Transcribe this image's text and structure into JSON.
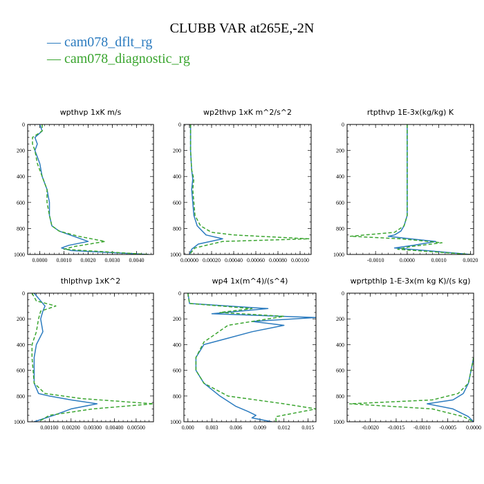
{
  "title": "CLUBB VAR at265E,-2N",
  "legend": [
    {
      "label": "— cam078_dflt_rg",
      "color": "#2b7bbf"
    },
    {
      "label": "— cam078_diagnostic_rg",
      "color": "#3aa52f"
    }
  ],
  "chart_data": [
    {
      "type": "line",
      "title": "wpthvp   1xK m/s",
      "xlim": [
        -0.0005,
        0.0047
      ],
      "ylim": [
        1000,
        0
      ],
      "xticks": [
        "0.0000",
        "0.0010",
        "0.0020",
        "0.0030",
        "0.0040"
      ],
      "xtick_values": [
        0,
        0.001,
        0.002,
        0.003,
        0.004
      ],
      "yticks": [
        "0",
        "200",
        "400",
        "600",
        "800",
        "1000"
      ],
      "series": [
        {
          "name": "cam078_dflt_rg",
          "color": "#2b7bbf",
          "dash": "",
          "x": [
            0.0,
            0.0001,
            -0.0002,
            -0.0001,
            -0.0002,
            -0.0001,
            0.0,
            0.0001,
            0.0003,
            0.0004,
            0.0004,
            0.0005,
            0.0008,
            0.0014,
            0.002,
            0.0012,
            0.0009,
            0.0013,
            0.0045
          ],
          "y": [
            0,
            50,
            100,
            150,
            200,
            250,
            300,
            400,
            500,
            600,
            700,
            780,
            820,
            860,
            900,
            930,
            950,
            970,
            1000
          ]
        },
        {
          "name": "cam078_diagnostic_rg",
          "color": "#3aa52f",
          "dash": "5,3",
          "x": [
            0.0001,
            0.0001,
            -0.0003,
            -0.0003,
            -0.0002,
            -0.0001,
            0.0001,
            0.0003,
            0.0003,
            0.0004,
            0.0005,
            0.0008,
            0.0016,
            0.0027,
            0.0014,
            0.001,
            0.0045
          ],
          "y": [
            0,
            50,
            100,
            150,
            200,
            300,
            400,
            500,
            600,
            700,
            780,
            820,
            860,
            900,
            940,
            960,
            1000
          ]
        }
      ]
    },
    {
      "type": "line",
      "title": "wp2thvp   1xK m^2/s^2",
      "xlim": [
        -5e-05,
        0.0011
      ],
      "ylim": [
        1000,
        0
      ],
      "xticks": [
        "0.00000",
        "0.00020",
        "0.00040",
        "0.00060",
        "0.00080",
        "0.00100"
      ],
      "xtick_values": [
        0,
        0.0002,
        0.0004,
        0.0006,
        0.0008,
        0.001
      ],
      "yticks": [
        "0",
        "200",
        "400",
        "600",
        "800",
        "1000"
      ],
      "series": [
        {
          "name": "cam078_dflt_rg",
          "color": "#2b7bbf",
          "dash": "",
          "x": [
            1e-05,
            1e-05,
            2e-05,
            3e-05,
            2e-05,
            3e-05,
            4e-05,
            7e-05,
            0.00015,
            0.0003,
            8e-05,
            2e-05,
            0.0
          ],
          "y": [
            0,
            200,
            350,
            420,
            500,
            600,
            700,
            780,
            850,
            880,
            920,
            960,
            1000
          ]
        },
        {
          "name": "cam078_diagnostic_rg",
          "color": "#3aa52f",
          "dash": "5,3",
          "x": [
            1e-05,
            1e-05,
            2e-05,
            4e-05,
            3e-05,
            4e-05,
            5e-05,
            0.0001,
            0.0002,
            0.0004,
            0.00108,
            0.0003,
            5e-05,
            0.0
          ],
          "y": [
            0,
            200,
            350,
            420,
            500,
            600,
            700,
            780,
            830,
            850,
            880,
            900,
            950,
            1000
          ]
        }
      ]
    },
    {
      "type": "line",
      "title": "rtpthvp   1E-3x(kg/kg) K",
      "xlim": [
        -0.0019,
        0.0021
      ],
      "ylim": [
        1000,
        0
      ],
      "xticks": [
        "-0.0010",
        "0.0000",
        "0.0010",
        "0.0020"
      ],
      "xtick_values": [
        -0.001,
        0,
        0.001,
        0.002
      ],
      "yticks": [
        "0",
        "200",
        "400",
        "600",
        "800",
        "1000"
      ],
      "series": [
        {
          "name": "cam078_dflt_rg",
          "color": "#2b7bbf",
          "dash": "",
          "x": [
            0.0,
            0.0,
            0.0,
            -0.0001,
            -0.0002,
            -0.0004,
            -0.0006,
            0.0001,
            0.0009,
            0.0002,
            -0.0004,
            0.0006,
            0.002
          ],
          "y": [
            0,
            400,
            700,
            780,
            820,
            850,
            860,
            880,
            900,
            930,
            950,
            970,
            1000
          ]
        },
        {
          "name": "cam078_diagnostic_rg",
          "color": "#3aa52f",
          "dash": "5,3",
          "x": [
            0.0,
            0.0,
            0.0,
            -0.0001,
            -0.0004,
            -0.0018,
            -0.0002,
            0.0011,
            0.0001,
            -0.0003,
            0.002
          ],
          "y": [
            0,
            400,
            700,
            780,
            830,
            860,
            880,
            910,
            940,
            960,
            1000
          ]
        }
      ]
    },
    {
      "type": "line",
      "title": "thlpthvp   1xK^2",
      "xlim": [
        0.0,
        0.0058
      ],
      "ylim": [
        1000,
        0
      ],
      "xticks": [
        "0.00100",
        "0.00200",
        "0.00300",
        "0.00400",
        "0.00500"
      ],
      "xtick_values": [
        0.001,
        0.002,
        0.003,
        0.004,
        0.005
      ],
      "yticks": [
        "0",
        "200",
        "400",
        "600",
        "800",
        "1000"
      ],
      "series": [
        {
          "name": "cam078_dflt_rg",
          "color": "#2b7bbf",
          "dash": "",
          "x": [
            0.0003,
            0.0006,
            0.0008,
            0.0007,
            0.0006,
            0.0007,
            0.0004,
            0.0003,
            0.0003,
            0.0005,
            0.001,
            0.002,
            0.0032,
            0.002,
            0.0012,
            0.0003
          ],
          "y": [
            0,
            60,
            100,
            140,
            200,
            300,
            400,
            500,
            700,
            780,
            800,
            830,
            860,
            900,
            950,
            1000
          ]
        },
        {
          "name": "cam078_diagnostic_rg",
          "color": "#3aa52f",
          "dash": "5,3",
          "x": [
            0.0002,
            0.0004,
            0.0013,
            0.0006,
            0.0005,
            0.0004,
            0.0002,
            0.0002,
            0.0003,
            0.0008,
            0.0025,
            0.0058,
            0.003,
            0.001,
            0.0006
          ],
          "y": [
            0,
            60,
            100,
            140,
            200,
            300,
            400,
            500,
            700,
            780,
            820,
            860,
            900,
            950,
            990
          ]
        }
      ]
    },
    {
      "type": "line",
      "title": "wp4   1x(m^4)/(s^4)",
      "xlim": [
        -0.0005,
        0.016
      ],
      "ylim": [
        1000,
        0
      ],
      "xticks": [
        "0.000",
        "0.003",
        "0.006",
        "0.009",
        "0.012",
        "0.015"
      ],
      "xtick_values": [
        0,
        0.003,
        0.006,
        0.009,
        0.012,
        0.015
      ],
      "yticks": [
        "0",
        "200",
        "400",
        "600",
        "800",
        "1000"
      ],
      "series": [
        {
          "name": "cam078_dflt_rg",
          "color": "#2b7bbf",
          "dash": "",
          "x": [
            0.0,
            0.0002,
            0.01,
            0.003,
            0.016,
            0.008,
            0.012,
            0.008,
            0.005,
            0.002,
            0.001,
            0.001,
            0.002,
            0.004,
            0.006,
            0.0075,
            0.0085,
            0.008,
            0.0105
          ],
          "y": [
            0,
            80,
            120,
            160,
            190,
            220,
            250,
            300,
            350,
            400,
            500,
            600,
            700,
            800,
            880,
            920,
            950,
            970,
            1000
          ]
        },
        {
          "name": "cam078_diagnostic_rg",
          "color": "#3aa52f",
          "dash": "5,3",
          "x": [
            0.0,
            0.0002,
            0.008,
            0.004,
            0.012,
            0.005,
            0.002,
            0.001,
            0.001,
            0.002,
            0.005,
            0.012,
            0.016,
            0.011,
            0.011
          ],
          "y": [
            0,
            80,
            120,
            150,
            180,
            250,
            380,
            500,
            600,
            700,
            800,
            860,
            900,
            960,
            1000
          ]
        }
      ]
    },
    {
      "type": "line",
      "title": "wprtpthlp   1-E-3x(m kg K)/(s kg)",
      "xlim": [
        -0.00245,
        0.0
      ],
      "ylim": [
        1000,
        0
      ],
      "xticks": [
        "-0.0020",
        "-0.0015",
        "-0.0010",
        "-0.0005",
        "0.0000"
      ],
      "xtick_values": [
        -0.002,
        -0.0015,
        -0.001,
        -0.0005,
        0
      ],
      "yticks": [
        "0",
        "200",
        "400",
        "600",
        "800",
        "1000"
      ],
      "series": [
        {
          "name": "cam078_dflt_rg",
          "color": "#2b7bbf",
          "dash": "",
          "x": [
            0.0,
            -5e-05,
            -0.0001,
            -0.0002,
            -0.0004,
            -0.0009,
            -0.0004,
            -0.0001,
            0.0
          ],
          "y": [
            500,
            600,
            700,
            780,
            830,
            860,
            900,
            960,
            1000
          ]
        },
        {
          "name": "cam078_diagnostic_rg",
          "color": "#3aa52f",
          "dash": "5,3",
          "x": [
            0.0,
            -5e-05,
            -0.0001,
            -0.0003,
            -0.0008,
            -0.0024,
            -0.0008,
            -0.0002,
            0.0
          ],
          "y": [
            500,
            600,
            700,
            780,
            830,
            860,
            900,
            960,
            1000
          ]
        }
      ]
    }
  ]
}
